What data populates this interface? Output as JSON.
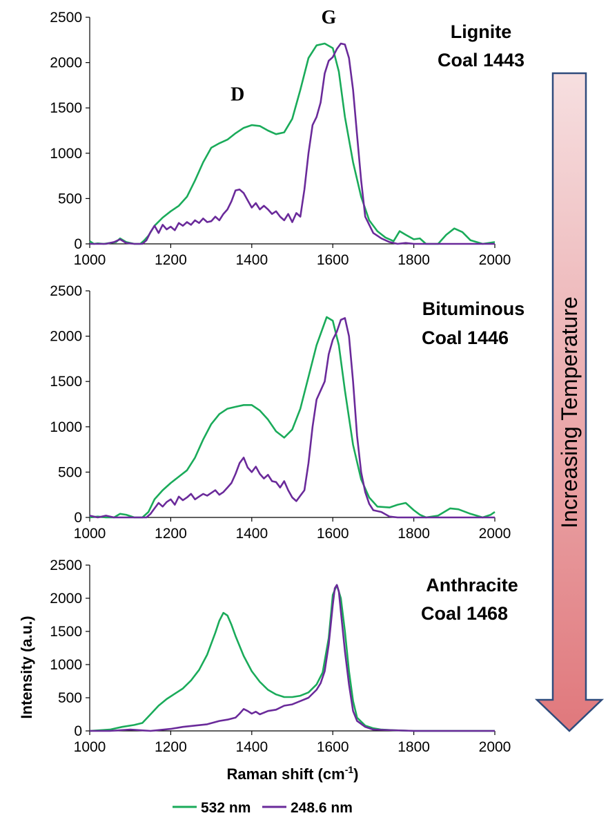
{
  "chart_data": [
    {
      "type": "line",
      "sample_label": [
        "Lignite",
        "Coal 1443"
      ],
      "peak_labels": [
        {
          "text": "D",
          "x": 1365,
          "y": 1580
        },
        {
          "text": "G",
          "x": 1590,
          "y": 2430
        }
      ],
      "xlim": [
        1000,
        2000
      ],
      "ylim": [
        0,
        2500
      ],
      "xticks": [
        1000,
        1200,
        1400,
        1600,
        1800,
        2000
      ],
      "yticks": [
        0,
        500,
        1000,
        1500,
        2000,
        2500
      ],
      "series": [
        {
          "name": "532 nm",
          "color": "#1aab5a",
          "x": [
            1000,
            1010,
            1020,
            1035,
            1050,
            1065,
            1075,
            1090,
            1110,
            1125,
            1135,
            1145,
            1160,
            1180,
            1200,
            1220,
            1240,
            1260,
            1280,
            1300,
            1320,
            1340,
            1360,
            1380,
            1400,
            1420,
            1440,
            1460,
            1480,
            1500,
            1520,
            1540,
            1560,
            1580,
            1600,
            1615,
            1630,
            1650,
            1670,
            1690,
            1710,
            1730,
            1750,
            1765,
            1780,
            1800,
            1815,
            1830,
            1860,
            1880,
            1900,
            1920,
            1940,
            1970,
            2000
          ],
          "y": [
            30,
            0,
            5,
            0,
            10,
            20,
            60,
            20,
            0,
            0,
            40,
            90,
            200,
            290,
            360,
            420,
            520,
            700,
            900,
            1060,
            1110,
            1150,
            1220,
            1280,
            1310,
            1300,
            1250,
            1210,
            1230,
            1380,
            1700,
            2050,
            2190,
            2210,
            2160,
            1900,
            1400,
            900,
            520,
            260,
            140,
            70,
            30,
            140,
            100,
            50,
            60,
            0,
            0,
            100,
            170,
            130,
            40,
            0,
            20
          ]
        },
        {
          "name": "248.6 nm",
          "color": "#6a2a9a",
          "x": [
            1000,
            1020,
            1040,
            1060,
            1075,
            1090,
            1110,
            1130,
            1140,
            1150,
            1160,
            1170,
            1180,
            1190,
            1200,
            1210,
            1220,
            1230,
            1240,
            1250,
            1260,
            1270,
            1280,
            1290,
            1300,
            1310,
            1320,
            1330,
            1340,
            1350,
            1360,
            1370,
            1380,
            1390,
            1400,
            1410,
            1420,
            1430,
            1440,
            1450,
            1460,
            1470,
            1480,
            1490,
            1500,
            1510,
            1520,
            1530,
            1540,
            1550,
            1560,
            1570,
            1580,
            1590,
            1600,
            1610,
            1620,
            1630,
            1640,
            1650,
            1660,
            1670,
            1680,
            1700,
            1720,
            1740,
            1760,
            1780,
            1800,
            1820,
            1850,
            1900,
            1950,
            2000
          ],
          "y": [
            0,
            0,
            0,
            20,
            50,
            10,
            0,
            0,
            40,
            130,
            200,
            120,
            210,
            160,
            190,
            150,
            230,
            200,
            240,
            210,
            260,
            230,
            280,
            240,
            250,
            300,
            260,
            330,
            380,
            470,
            590,
            600,
            560,
            480,
            400,
            450,
            380,
            420,
            380,
            330,
            360,
            300,
            260,
            330,
            240,
            340,
            300,
            600,
            1000,
            1310,
            1400,
            1560,
            1880,
            2020,
            2060,
            2150,
            2210,
            2200,
            2050,
            1700,
            1200,
            700,
            300,
            120,
            60,
            20,
            0,
            10,
            0,
            0,
            0,
            0,
            0,
            0
          ]
        }
      ]
    },
    {
      "type": "line",
      "sample_label": [
        "Bituminous",
        "Coal 1446"
      ],
      "xlim": [
        1000,
        2000
      ],
      "ylim": [
        0,
        2500
      ],
      "xticks": [
        1000,
        1200,
        1400,
        1600,
        1800,
        2000
      ],
      "yticks": [
        0,
        500,
        1000,
        1500,
        2000,
        2500
      ],
      "series": [
        {
          "name": "532 nm",
          "color": "#1aab5a",
          "x": [
            1000,
            1020,
            1040,
            1060,
            1075,
            1090,
            1110,
            1130,
            1145,
            1160,
            1180,
            1200,
            1220,
            1240,
            1260,
            1280,
            1300,
            1320,
            1340,
            1360,
            1380,
            1400,
            1420,
            1440,
            1460,
            1480,
            1500,
            1520,
            1540,
            1560,
            1585,
            1600,
            1615,
            1630,
            1650,
            1670,
            1690,
            1710,
            1740,
            1760,
            1780,
            1800,
            1815,
            1830,
            1860,
            1890,
            1910,
            1940,
            1970,
            1990,
            2000
          ],
          "y": [
            0,
            10,
            0,
            0,
            40,
            30,
            0,
            0,
            60,
            200,
            300,
            380,
            450,
            520,
            660,
            860,
            1030,
            1140,
            1200,
            1220,
            1240,
            1240,
            1180,
            1080,
            950,
            880,
            970,
            1200,
            1550,
            1900,
            2210,
            2170,
            1900,
            1400,
            800,
            420,
            220,
            120,
            110,
            140,
            160,
            80,
            30,
            0,
            20,
            100,
            90,
            40,
            0,
            30,
            60
          ]
        },
        {
          "name": "248.6 nm",
          "color": "#6a2a9a",
          "x": [
            1000,
            1020,
            1040,
            1060,
            1080,
            1100,
            1120,
            1140,
            1150,
            1160,
            1170,
            1180,
            1190,
            1200,
            1210,
            1220,
            1230,
            1240,
            1250,
            1260,
            1270,
            1280,
            1290,
            1300,
            1310,
            1320,
            1330,
            1340,
            1350,
            1360,
            1370,
            1380,
            1390,
            1400,
            1410,
            1420,
            1430,
            1440,
            1450,
            1460,
            1470,
            1480,
            1490,
            1500,
            1510,
            1520,
            1530,
            1540,
            1550,
            1560,
            1570,
            1580,
            1590,
            1600,
            1610,
            1620,
            1630,
            1640,
            1650,
            1660,
            1670,
            1680,
            1690,
            1700,
            1720,
            1740,
            1760,
            1780,
            1800,
            1820,
            1850,
            1900,
            1950,
            2000
          ],
          "y": [
            20,
            0,
            20,
            0,
            0,
            0,
            0,
            0,
            40,
            100,
            160,
            120,
            170,
            200,
            140,
            230,
            190,
            220,
            260,
            200,
            230,
            260,
            240,
            270,
            300,
            250,
            280,
            330,
            380,
            480,
            600,
            660,
            550,
            500,
            560,
            480,
            430,
            470,
            400,
            390,
            330,
            400,
            300,
            220,
            180,
            240,
            300,
            600,
            1000,
            1300,
            1400,
            1500,
            1800,
            1960,
            2050,
            2180,
            2200,
            2000,
            1500,
            900,
            500,
            280,
            150,
            80,
            60,
            10,
            0,
            0,
            0,
            0,
            0,
            0,
            0,
            0
          ]
        }
      ]
    },
    {
      "type": "line",
      "sample_label": [
        "Anthracite",
        "Coal 1468"
      ],
      "xlim": [
        1000,
        2000
      ],
      "ylim": [
        0,
        2500
      ],
      "xticks": [
        1000,
        1200,
        1400,
        1600,
        1800,
        2000
      ],
      "yticks": [
        0,
        500,
        1000,
        1500,
        2000,
        2500
      ],
      "series": [
        {
          "name": "532 nm",
          "color": "#1aab5a",
          "x": [
            1000,
            1050,
            1080,
            1110,
            1130,
            1150,
            1170,
            1190,
            1210,
            1230,
            1250,
            1270,
            1290,
            1310,
            1320,
            1330,
            1340,
            1350,
            1360,
            1380,
            1400,
            1420,
            1440,
            1460,
            1480,
            1500,
            1520,
            1540,
            1560,
            1575,
            1590,
            1600,
            1610,
            1620,
            1630,
            1640,
            1650,
            1660,
            1680,
            1700,
            1720,
            1750,
            1800,
            1850,
            1900,
            1950,
            2000
          ],
          "y": [
            0,
            20,
            60,
            90,
            120,
            250,
            380,
            480,
            560,
            640,
            760,
            920,
            1150,
            1480,
            1660,
            1780,
            1740,
            1600,
            1430,
            1130,
            900,
            740,
            620,
            550,
            510,
            510,
            530,
            580,
            700,
            880,
            1400,
            2050,
            2200,
            2000,
            1500,
            900,
            450,
            200,
            80,
            40,
            20,
            10,
            0,
            0,
            0,
            0,
            0
          ]
        },
        {
          "name": "248.6 nm",
          "color": "#6a2a9a",
          "x": [
            1000,
            1050,
            1100,
            1150,
            1200,
            1230,
            1260,
            1290,
            1320,
            1340,
            1360,
            1370,
            1380,
            1390,
            1400,
            1410,
            1420,
            1440,
            1460,
            1480,
            1500,
            1520,
            1540,
            1560,
            1570,
            1580,
            1590,
            1600,
            1605,
            1610,
            1615,
            1620,
            1630,
            1640,
            1650,
            1660,
            1680,
            1700,
            1750,
            1800,
            1850,
            1900,
            1950,
            2000
          ],
          "y": [
            0,
            0,
            20,
            0,
            30,
            60,
            80,
            100,
            150,
            170,
            200,
            260,
            330,
            300,
            260,
            290,
            250,
            300,
            320,
            380,
            400,
            450,
            500,
            620,
            720,
            900,
            1300,
            1900,
            2150,
            2200,
            2100,
            1800,
            1200,
            700,
            300,
            150,
            60,
            20,
            10,
            0,
            0,
            0,
            0,
            0
          ]
        }
      ]
    }
  ],
  "shared": {
    "ylabel": "Intensity (a.u.)",
    "xlabel_main": "Raman shift (cm",
    "xlabel_sup": "-1",
    "xlabel_close": ")"
  },
  "legend": [
    {
      "name": "532 nm",
      "color": "#1aab5a"
    },
    {
      "name": "248.6 nm",
      "color": "#6a2a9a"
    }
  ],
  "arrow": {
    "label": "Increasing Temperature",
    "color_top": "#f6dfe0",
    "color_bottom": "#e0787c",
    "border_color": "#2f4b7c"
  }
}
